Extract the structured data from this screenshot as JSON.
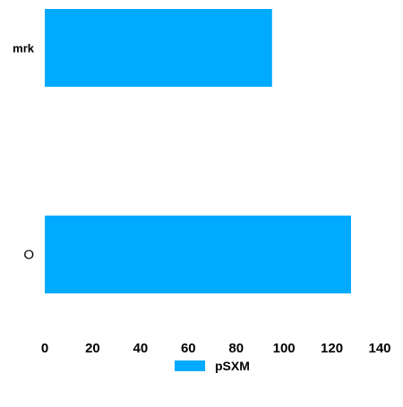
{
  "chart_data": {
    "type": "bar",
    "orientation": "horizontal",
    "categories": [
      "mrk",
      "O"
    ],
    "series": [
      {
        "name": "pSXM",
        "values": [
          95,
          128
        ],
        "color": "#00aaff"
      }
    ],
    "xlim": [
      0,
      140
    ],
    "xticks": [
      0,
      20,
      40,
      60,
      80,
      100,
      120,
      140
    ],
    "grid": false,
    "legend": {
      "position": "bottom-center"
    }
  }
}
